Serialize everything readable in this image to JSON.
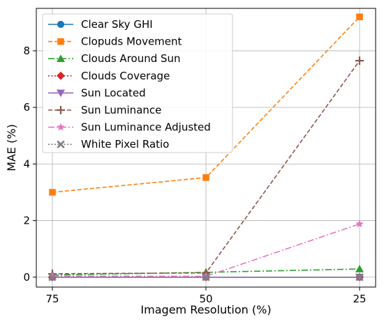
{
  "chart_data": {
    "type": "line",
    "xlabel": "Imagem Resolution (%)",
    "ylabel": "MAE (%)",
    "categories": [
      "75",
      "50",
      "25"
    ],
    "ylim": [
      -0.35,
      9.5
    ],
    "yticks": [
      0,
      2,
      4,
      6,
      8
    ],
    "grid": true,
    "legend_position": "top-left",
    "series": [
      {
        "name": "Clear Sky GHI",
        "values": [
          0.0,
          0.0,
          0.0
        ],
        "color": "#1f77b4",
        "marker": "circle",
        "dash": "solid"
      },
      {
        "name": "Clopuds Movement",
        "values": [
          3.0,
          3.52,
          9.2
        ],
        "color": "#ff7f0e",
        "marker": "square",
        "dash": "dashed"
      },
      {
        "name": "Clouds Around Sun",
        "values": [
          0.08,
          0.17,
          0.29
        ],
        "color": "#2ca02c",
        "marker": "triangle-up",
        "dash": "dashdot"
      },
      {
        "name": "Clouds Coverage",
        "values": [
          0.0,
          0.0,
          0.0
        ],
        "color": "#d62728",
        "marker": "diamond",
        "dash": "dotted"
      },
      {
        "name": "Sun Located",
        "values": [
          0.0,
          0.0,
          0.0
        ],
        "color": "#9467bd",
        "marker": "triangle-down",
        "dash": "solid"
      },
      {
        "name": "Sun Luminance",
        "values": [
          0.12,
          0.15,
          7.65
        ],
        "color": "#8c564b",
        "marker": "plus",
        "dash": "dashed"
      },
      {
        "name": "Sun Luminance Adjusted",
        "values": [
          0.04,
          0.03,
          1.88
        ],
        "color": "#e377c2",
        "marker": "star",
        "dash": "dashdot"
      },
      {
        "name": "White Pixel Ratio",
        "values": [
          0.0,
          0.0,
          0.0
        ],
        "color": "#7f7f7f",
        "marker": "x",
        "dash": "dotted"
      }
    ]
  }
}
